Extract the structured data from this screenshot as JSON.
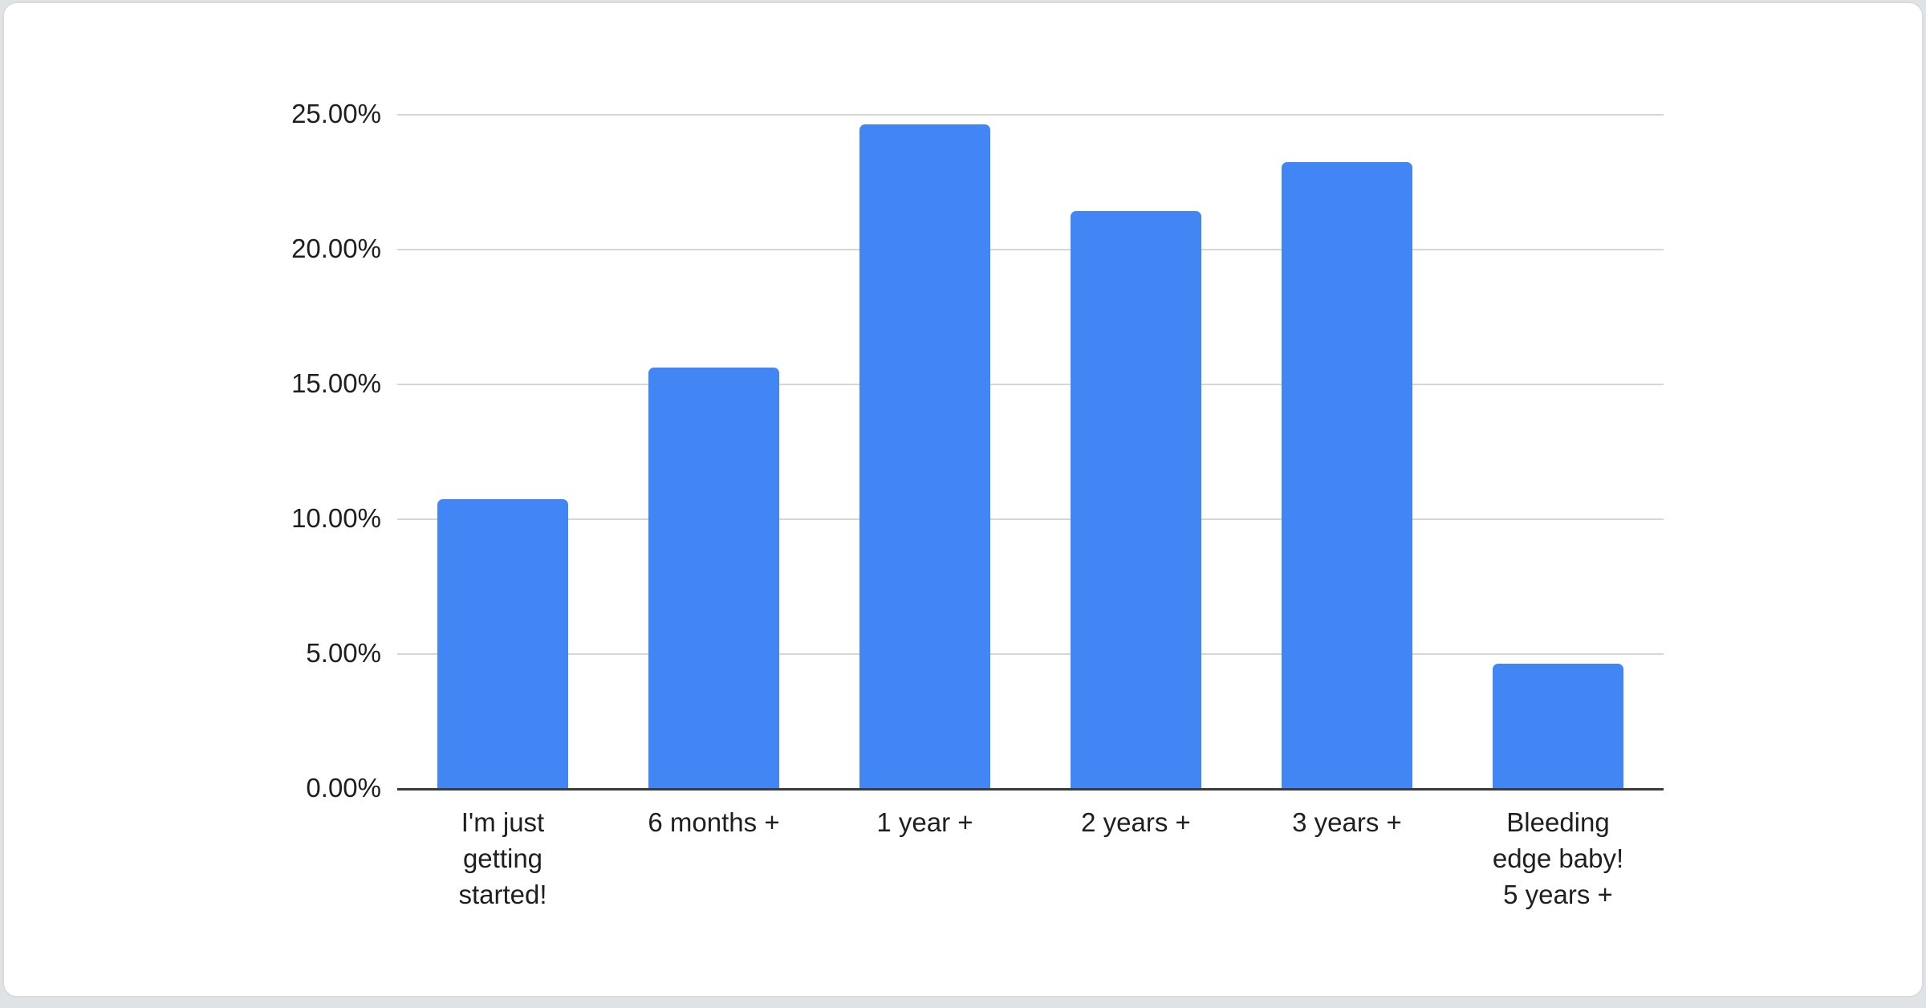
{
  "page": {
    "background_color": "#dfe3e6",
    "card_background_color": "#ffffff",
    "card_border_color": "#d9dcdf"
  },
  "chart_data": {
    "type": "bar",
    "title": "",
    "categories": [
      "I'm just getting started!",
      "6 months +",
      "1 year +",
      "2 years +",
      "3 years +",
      "Bleeding edge baby! 5 years +"
    ],
    "category_lines": [
      [
        "I'm just",
        "getting",
        "started!"
      ],
      [
        "6 months +"
      ],
      [
        "1 year +"
      ],
      [
        "2 years +"
      ],
      [
        "3 years +"
      ],
      [
        "Bleeding",
        "edge baby!",
        "5 years +"
      ]
    ],
    "values": [
      10.7,
      15.6,
      24.6,
      21.4,
      23.2,
      4.6
    ],
    "unit": "%",
    "xlabel": "",
    "ylabel": "",
    "yticks": [
      "0.00%",
      "5.00%",
      "10.00%",
      "15.00%",
      "20.00%",
      "25.00%"
    ],
    "ylim": [
      0,
      25
    ],
    "grid": true,
    "legend": "none",
    "bar_color": "#4285F4",
    "gridline_color": "#d6d6d6",
    "axis_line_color": "#3b3b3b",
    "label_color": "#1f1f1f"
  }
}
